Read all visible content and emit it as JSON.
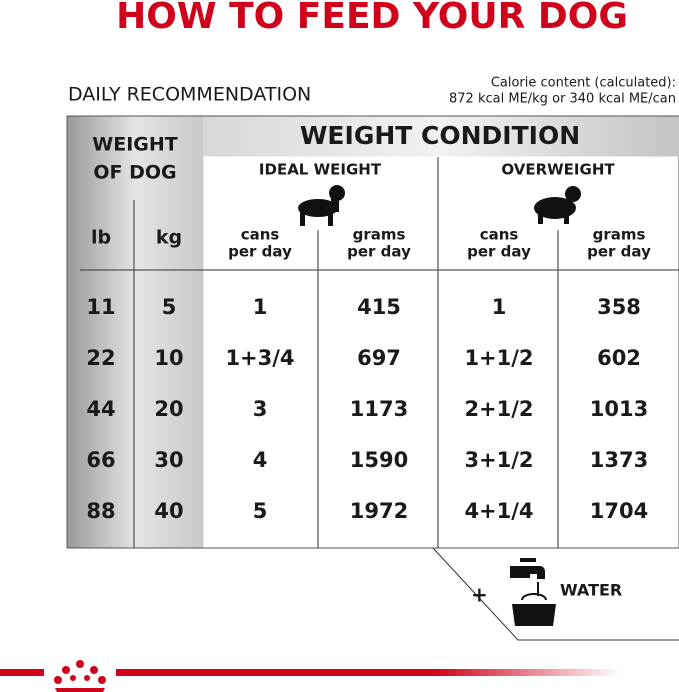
{
  "header": {
    "title": "HOW TO FEED YOUR DOG"
  },
  "subheading": "DAILY RECOMMENDATION",
  "calorie_note": [
    "Calorie content (calculated):",
    "872 kcal ME/kg or 340 kcal ME/can"
  ],
  "table": {
    "weight_header": [
      "WEIGHT",
      "OF DOG"
    ],
    "condition_header": "WEIGHT CONDITION",
    "groups": [
      "IDEAL WEIGHT",
      "OVERWEIGHT"
    ],
    "columns": [
      "lb",
      "kg",
      [
        "cans",
        "per day"
      ],
      [
        "grams",
        "per day"
      ],
      [
        "cans",
        "per day"
      ],
      [
        "grams",
        "per day"
      ]
    ],
    "rows": [
      [
        "11",
        "5",
        "1",
        "415",
        "1",
        "358"
      ],
      [
        "22",
        "10",
        "1+3/4",
        "697",
        "1+1/2",
        "602"
      ],
      [
        "44",
        "20",
        "3",
        "1173",
        "2+1/2",
        "1013"
      ],
      [
        "66",
        "30",
        "4",
        "1590",
        "3+1/2",
        "1373"
      ],
      [
        "88",
        "40",
        "5",
        "1972",
        "4+1/4",
        "1704"
      ]
    ]
  },
  "water": "WATER"
}
